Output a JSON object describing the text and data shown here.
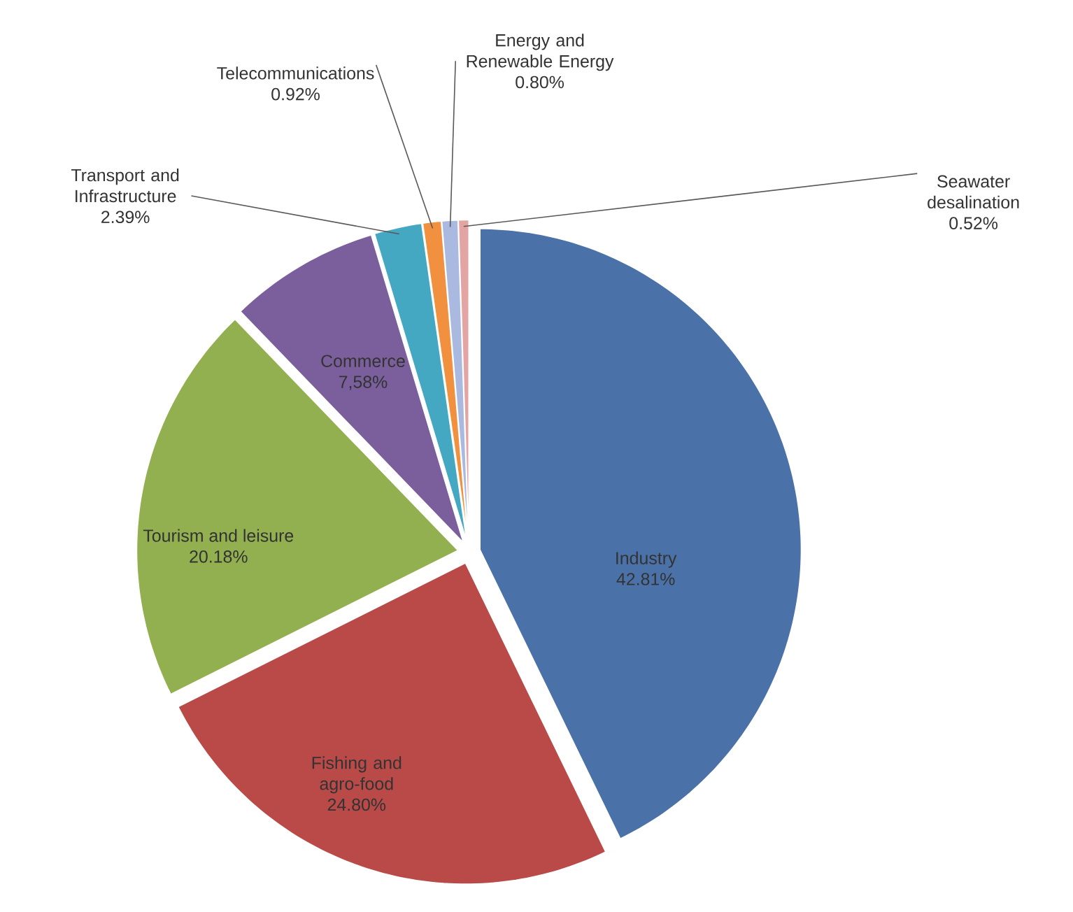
{
  "chart_data": {
    "type": "pie",
    "categories": [
      "Industry",
      "Fishing and agro-food",
      "Tourism and leisure",
      "Commerce",
      "Transport and Infrastructure",
      "Telecommunications",
      "Energy and Renewable Energy",
      "Seawater desalination"
    ],
    "values": [
      42.81,
      24.8,
      20.18,
      7.58,
      2.39,
      0.92,
      0.8,
      0.52
    ],
    "colors": [
      "#4a72a9",
      "#b94a48",
      "#92b04f",
      "#7b5f9c",
      "#44a8c2",
      "#f1913f",
      "#a9b9df",
      "#e3a5a3"
    ],
    "value_labels": [
      "42.81%",
      "24.80%",
      "20.18%",
      "7,58%",
      "2.39%",
      "0.92%",
      "0.80%",
      "0.52%"
    ]
  }
}
